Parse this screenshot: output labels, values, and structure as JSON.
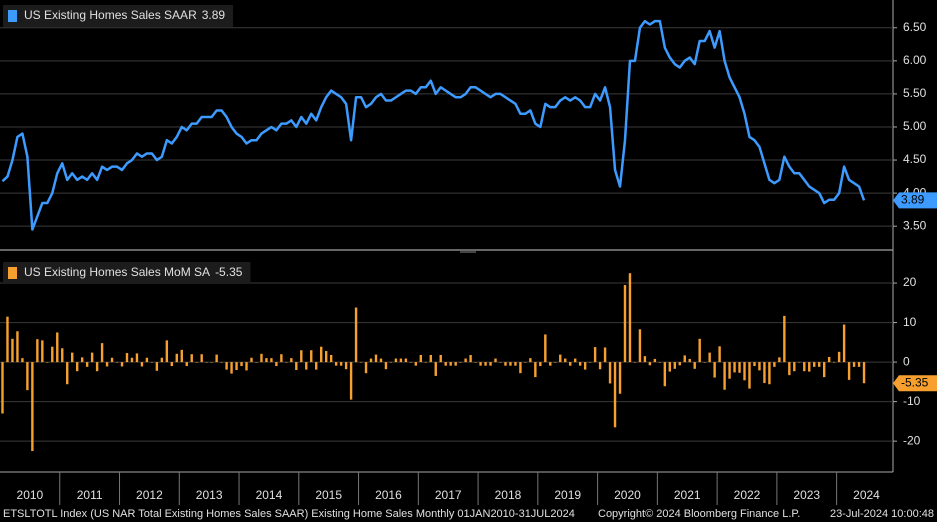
{
  "chart_data": [
    {
      "type": "line",
      "series": [
        {
          "name": "US Existing Homes Sales SAAR",
          "color": "#3d9bff",
          "values": [
            4.18,
            4.25,
            4.5,
            4.85,
            4.9,
            4.55,
            3.45,
            3.65,
            3.85,
            3.85,
            4.0,
            4.3,
            4.45,
            4.2,
            4.3,
            4.2,
            4.25,
            4.2,
            4.3,
            4.2,
            4.4,
            4.35,
            4.4,
            4.4,
            4.35,
            4.45,
            4.5,
            4.6,
            4.55,
            4.6,
            4.6,
            4.5,
            4.55,
            4.8,
            4.75,
            4.85,
            5.0,
            4.95,
            5.05,
            5.05,
            5.15,
            5.15,
            5.15,
            5.25,
            5.25,
            5.15,
            5.0,
            4.9,
            4.85,
            4.75,
            4.8,
            4.8,
            4.9,
            4.95,
            5.0,
            4.95,
            5.05,
            5.05,
            5.1,
            5.0,
            5.15,
            5.05,
            5.2,
            5.1,
            5.3,
            5.45,
            5.55,
            5.5,
            5.45,
            5.35,
            4.8,
            5.45,
            5.45,
            5.3,
            5.35,
            5.45,
            5.5,
            5.4,
            5.4,
            5.45,
            5.5,
            5.55,
            5.55,
            5.5,
            5.6,
            5.6,
            5.7,
            5.5,
            5.6,
            5.55,
            5.5,
            5.45,
            5.45,
            5.5,
            5.6,
            5.6,
            5.55,
            5.5,
            5.45,
            5.5,
            5.5,
            5.45,
            5.4,
            5.35,
            5.2,
            5.2,
            5.25,
            5.05,
            5.0,
            5.35,
            5.3,
            5.3,
            5.4,
            5.45,
            5.4,
            5.45,
            5.4,
            5.3,
            5.3,
            5.5,
            5.4,
            5.6,
            5.3,
            4.35,
            4.1,
            4.8,
            6.0,
            6.0,
            6.5,
            6.6,
            6.55,
            6.6,
            6.6,
            6.2,
            6.05,
            5.95,
            5.9,
            6.0,
            6.05,
            5.95,
            6.3,
            6.3,
            6.45,
            6.2,
            6.45,
            6.0,
            5.75,
            5.6,
            5.45,
            5.2,
            4.85,
            4.8,
            4.7,
            4.45,
            4.2,
            4.15,
            4.2,
            4.55,
            4.4,
            4.3,
            4.3,
            4.2,
            4.1,
            4.05,
            4.0,
            3.85,
            3.9,
            3.9,
            4.0,
            4.4,
            4.2,
            4.15,
            4.1,
            3.89
          ]
        }
      ],
      "ylim": [
        3.17,
        6.89
      ],
      "yticks": [
        {
          "value": 3.5,
          "label": "3.50"
        },
        {
          "value": 4,
          "label": "4.00"
        },
        {
          "value": 4.5,
          "label": "4.50"
        },
        {
          "value": 5,
          "label": "5.00"
        },
        {
          "value": 5.5,
          "label": "5.50"
        },
        {
          "value": 6,
          "label": "6.00"
        },
        {
          "value": 6.5,
          "label": "6.50"
        }
      ],
      "grid": true
    },
    {
      "type": "bar",
      "categories": [
        "2010",
        null,
        null,
        null,
        null,
        null,
        null,
        null,
        null,
        null,
        null,
        null,
        "2011",
        null,
        null,
        null,
        null,
        null,
        null,
        null,
        null,
        null,
        null,
        null,
        "2012",
        null,
        null,
        null,
        null,
        null,
        null,
        null,
        null,
        null,
        null,
        null,
        "2013",
        null,
        null,
        null,
        null,
        null,
        null,
        null,
        null,
        null,
        null,
        null,
        "2014",
        null,
        null,
        null,
        null,
        null,
        null,
        null,
        null,
        null,
        null,
        null,
        "2015",
        null,
        null,
        null,
        null,
        null,
        null,
        null,
        null,
        null,
        null,
        null,
        "2016",
        null,
        null,
        null,
        null,
        null,
        null,
        null,
        null,
        null,
        null,
        null,
        "2017",
        null,
        null,
        null,
        null,
        null,
        null,
        null,
        null,
        null,
        null,
        null,
        "2018",
        null,
        null,
        null,
        null,
        null,
        null,
        null,
        null,
        null,
        null,
        null,
        "2019",
        null,
        null,
        null,
        null,
        null,
        null,
        null,
        null,
        null,
        null,
        null,
        "2020",
        null,
        null,
        null,
        null,
        null,
        null,
        null,
        null,
        null,
        null,
        null,
        "2021",
        null,
        null,
        null,
        null,
        null,
        null,
        null,
        null,
        null,
        null,
        null,
        "2022",
        null,
        null,
        null,
        null,
        null,
        null,
        null,
        null,
        null,
        null,
        null,
        "2023",
        null,
        null,
        null,
        null,
        null,
        null,
        null,
        null,
        null,
        null,
        null,
        "2024",
        null,
        null,
        null,
        null,
        null
      ],
      "series": [
        {
          "name": "US Existing Homes Sales MoM SA",
          "color": "#f7a030",
          "values": [
            -13,
            11.5,
            5.9,
            7.8,
            1.0,
            -7.1,
            -22.5,
            5.8,
            5.5,
            0,
            3.9,
            7.5,
            3.5,
            -5.6,
            2.4,
            -2.3,
            1.2,
            -1.2,
            2.4,
            -2.3,
            4.8,
            -1.1,
            1.1,
            0,
            -1.1,
            2.3,
            1.1,
            2.2,
            -1.1,
            1.1,
            0,
            -2.2,
            1.1,
            5.5,
            -1.0,
            2.1,
            3.1,
            -1.0,
            2.0,
            0,
            2.0,
            0,
            0,
            1.9,
            0,
            -1.9,
            -2.9,
            -2.0,
            -1.0,
            -2.1,
            1.1,
            0,
            2.1,
            1.0,
            1.0,
            -1.0,
            2.0,
            0,
            1.0,
            -2.0,
            3.0,
            -1.9,
            3.0,
            -1.9,
            3.9,
            2.8,
            1.8,
            -0.9,
            -0.9,
            -1.8,
            -9.5,
            13.8,
            0,
            -2.8,
            0.9,
            1.9,
            0.9,
            -1.8,
            0,
            0.9,
            0.9,
            0.9,
            0,
            -0.9,
            1.8,
            0,
            1.8,
            -3.5,
            1.8,
            -0.9,
            -0.9,
            -0.9,
            0,
            0.9,
            1.8,
            0,
            -0.9,
            -0.9,
            -0.9,
            0.9,
            0,
            -0.9,
            -0.9,
            -0.9,
            -2.8,
            0,
            1.0,
            -3.8,
            -1.0,
            7.0,
            -0.9,
            0,
            1.9,
            0.9,
            -0.9,
            0.9,
            -0.9,
            -1.9,
            0,
            3.8,
            -1.8,
            3.7,
            -5.4,
            -16.5,
            -8.0,
            19.5,
            22.5,
            0,
            8.3,
            1.5,
            -0.8,
            0.8,
            0,
            -6.1,
            -2.4,
            -1.7,
            -0.8,
            1.7,
            0.8,
            -1.7,
            5.9,
            0,
            2.4,
            -3.9,
            4.0,
            -7.0,
            -4.2,
            -2.6,
            -2.7,
            -4.6,
            -6.7,
            -1.0,
            -2.1,
            -5.3,
            -5.6,
            -1.2,
            1.2,
            11.7,
            -3.3,
            -2.3,
            0,
            -2.3,
            -2.4,
            -1.2,
            -1.2,
            -3.8,
            1.3,
            0,
            2.6,
            9.5,
            -4.5,
            -1.2,
            -1.2,
            -5.35
          ]
        }
      ],
      "ylim": [
        -27.3,
        27.1
      ],
      "yticks": [
        -20,
        -10,
        0,
        10,
        20
      ],
      "grid": true
    }
  ],
  "footer": {
    "left": "ETSLTOTL Index (US NAR Total Existing Homes Sales SAAR) Existing Home Sales  Monthly 01JAN2010-31JUL2024",
    "copyright": "Copyright© 2024 Bloomberg Finance L.P.",
    "timestamp": "23-Jul-2024 10:00:48"
  }
}
